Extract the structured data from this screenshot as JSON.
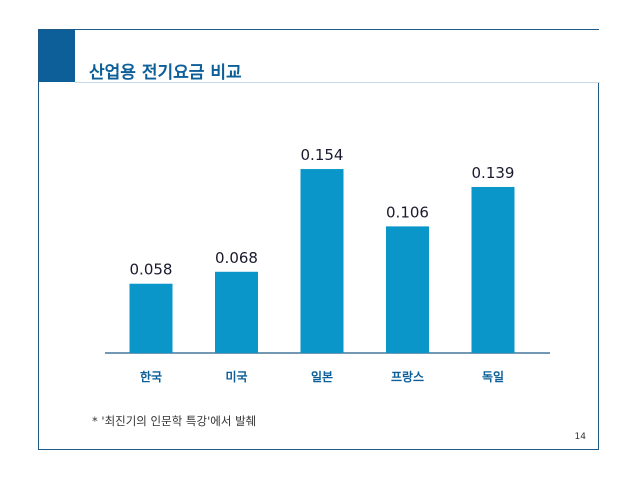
{
  "title": "산업용 전기요금 비교",
  "footnote": "* '최진기의 인문학 특강'에서 발췌",
  "page_number": "14",
  "colors": {
    "bar": "#0a96c9",
    "accent": "#0c5f99",
    "axis": "#1f5a86",
    "value_label": "#1a1a2e",
    "category_label": "#0c5f99"
  },
  "chart_data": {
    "type": "bar",
    "categories": [
      "한국",
      "미국",
      "일본",
      "프랑스",
      "독일"
    ],
    "values": [
      0.058,
      0.068,
      0.154,
      0.106,
      0.139
    ],
    "value_labels": [
      "0.058",
      "0.068",
      "0.154",
      "0.106",
      "0.139"
    ],
    "title": "",
    "xlabel": "",
    "ylabel": "",
    "ylim": [
      0,
      0.18
    ],
    "grid": false,
    "legend": "none"
  }
}
